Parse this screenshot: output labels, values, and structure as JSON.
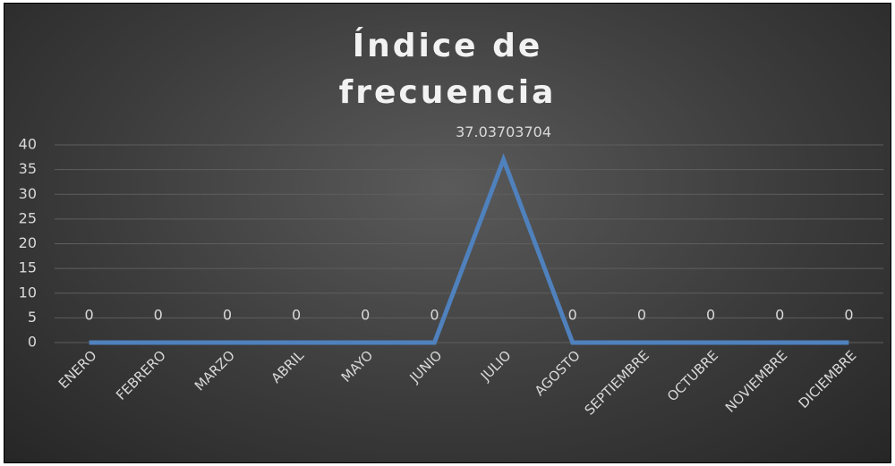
{
  "chart_data": {
    "type": "line",
    "title": "Índice de frecuencia",
    "categories": [
      "ENERO",
      "FEBRERO",
      "MARZO",
      "ABRIL",
      "MAYO",
      "JUNIO",
      "JULIO",
      "AGOSTO",
      "SEPTIEMBRE",
      "OCTUBRE",
      "NOVIEMBRE",
      "DICIEMBRE"
    ],
    "values": [
      0,
      0,
      0,
      0,
      0,
      0,
      37.03703704,
      0,
      0,
      0,
      0,
      0
    ],
    "color": "#4f81bd",
    "ylim": [
      0,
      40
    ],
    "yticks": [
      0,
      5,
      10,
      15,
      20,
      25,
      30,
      35,
      40
    ],
    "grid": true
  }
}
